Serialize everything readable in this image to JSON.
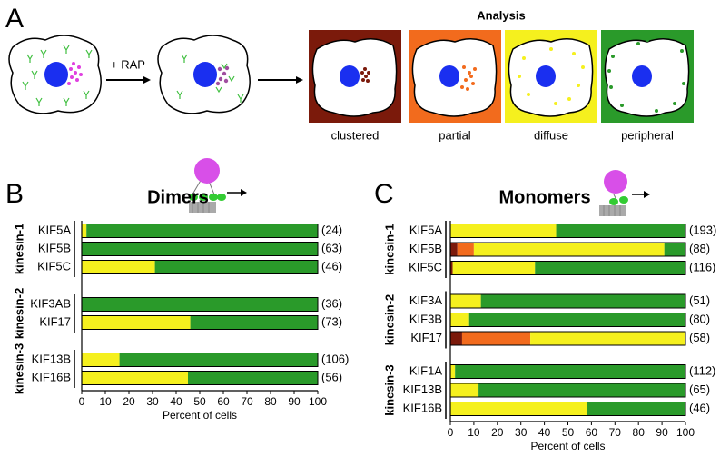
{
  "panel_a": {
    "letter": "A",
    "arrow_label": "+ RAP"
  },
  "legend": {
    "title": "Analysis",
    "names": [
      "clustered",
      "partial",
      "diffuse",
      "peripheral"
    ],
    "colors": [
      "#7b1a0b",
      "#f26b1d",
      "#f5f01e",
      "#2a9a2a"
    ]
  },
  "chart_data": [
    {
      "type": "bar",
      "orientation": "horizontal",
      "stacked": true,
      "panel": "B",
      "title": "Dimers",
      "x_label": "Percent of cells",
      "categories": [
        "KIF5A",
        "KIF5B",
        "KIF5C",
        "KIF3AB",
        "KIF17",
        "KIF13B",
        "KIF16B"
      ],
      "groups": [
        "kinesin-1",
        "kinesin-1",
        "kinesin-1",
        "kinesin-2",
        "kinesin-2",
        "kinesin-3",
        "kinesin-3"
      ],
      "counts": [
        "(24)",
        "(63)",
        "(46)",
        "(36)",
        "(73)",
        "(106)",
        "(56)"
      ],
      "series": [
        {
          "values": [
            0,
            0,
            0,
            0,
            0,
            0,
            0
          ]
        },
        {
          "values": [
            0,
            0,
            0,
            0,
            0,
            0,
            0
          ]
        },
        {
          "values": [
            2,
            0,
            31,
            0,
            46,
            16,
            45
          ]
        },
        {
          "values": [
            98,
            100,
            69,
            100,
            54,
            84,
            55
          ]
        }
      ],
      "xlim": [
        0,
        100
      ],
      "xticks": [
        0,
        10,
        20,
        30,
        40,
        50,
        60,
        70,
        80,
        90,
        100
      ]
    },
    {
      "type": "bar",
      "orientation": "horizontal",
      "stacked": true,
      "panel": "C",
      "title": "Monomers",
      "x_label": "Percent of cells",
      "categories": [
        "KIF5A",
        "KIF5B",
        "KIF5C",
        "KIF3A",
        "KIF3B",
        "KIF17",
        "KIF1A",
        "KIF13B",
        "KIF16B"
      ],
      "groups": [
        "kinesin-1",
        "kinesin-1",
        "kinesin-1",
        "kinesin-2",
        "kinesin-2",
        "kinesin-2",
        "kinesin-3",
        "kinesin-3",
        "kinesin-3"
      ],
      "counts": [
        "(193)",
        "(88)",
        "(116)",
        "(51)",
        "(80)",
        "(58)",
        "(112)",
        "(65)",
        "(46)"
      ],
      "series": [
        {
          "values": [
            0,
            3,
            1,
            0,
            0,
            5,
            0,
            0,
            0
          ]
        },
        {
          "values": [
            0,
            7,
            0,
            0,
            0,
            29,
            0,
            0,
            0
          ]
        },
        {
          "values": [
            45,
            81,
            35,
            13,
            8,
            66,
            2,
            12,
            58
          ]
        },
        {
          "values": [
            55,
            9,
            64,
            87,
            92,
            0,
            98,
            88,
            42
          ]
        }
      ],
      "xlim": [
        0,
        100
      ],
      "xticks": [
        0,
        10,
        20,
        30,
        40,
        50,
        60,
        70,
        80,
        90,
        100
      ]
    }
  ]
}
